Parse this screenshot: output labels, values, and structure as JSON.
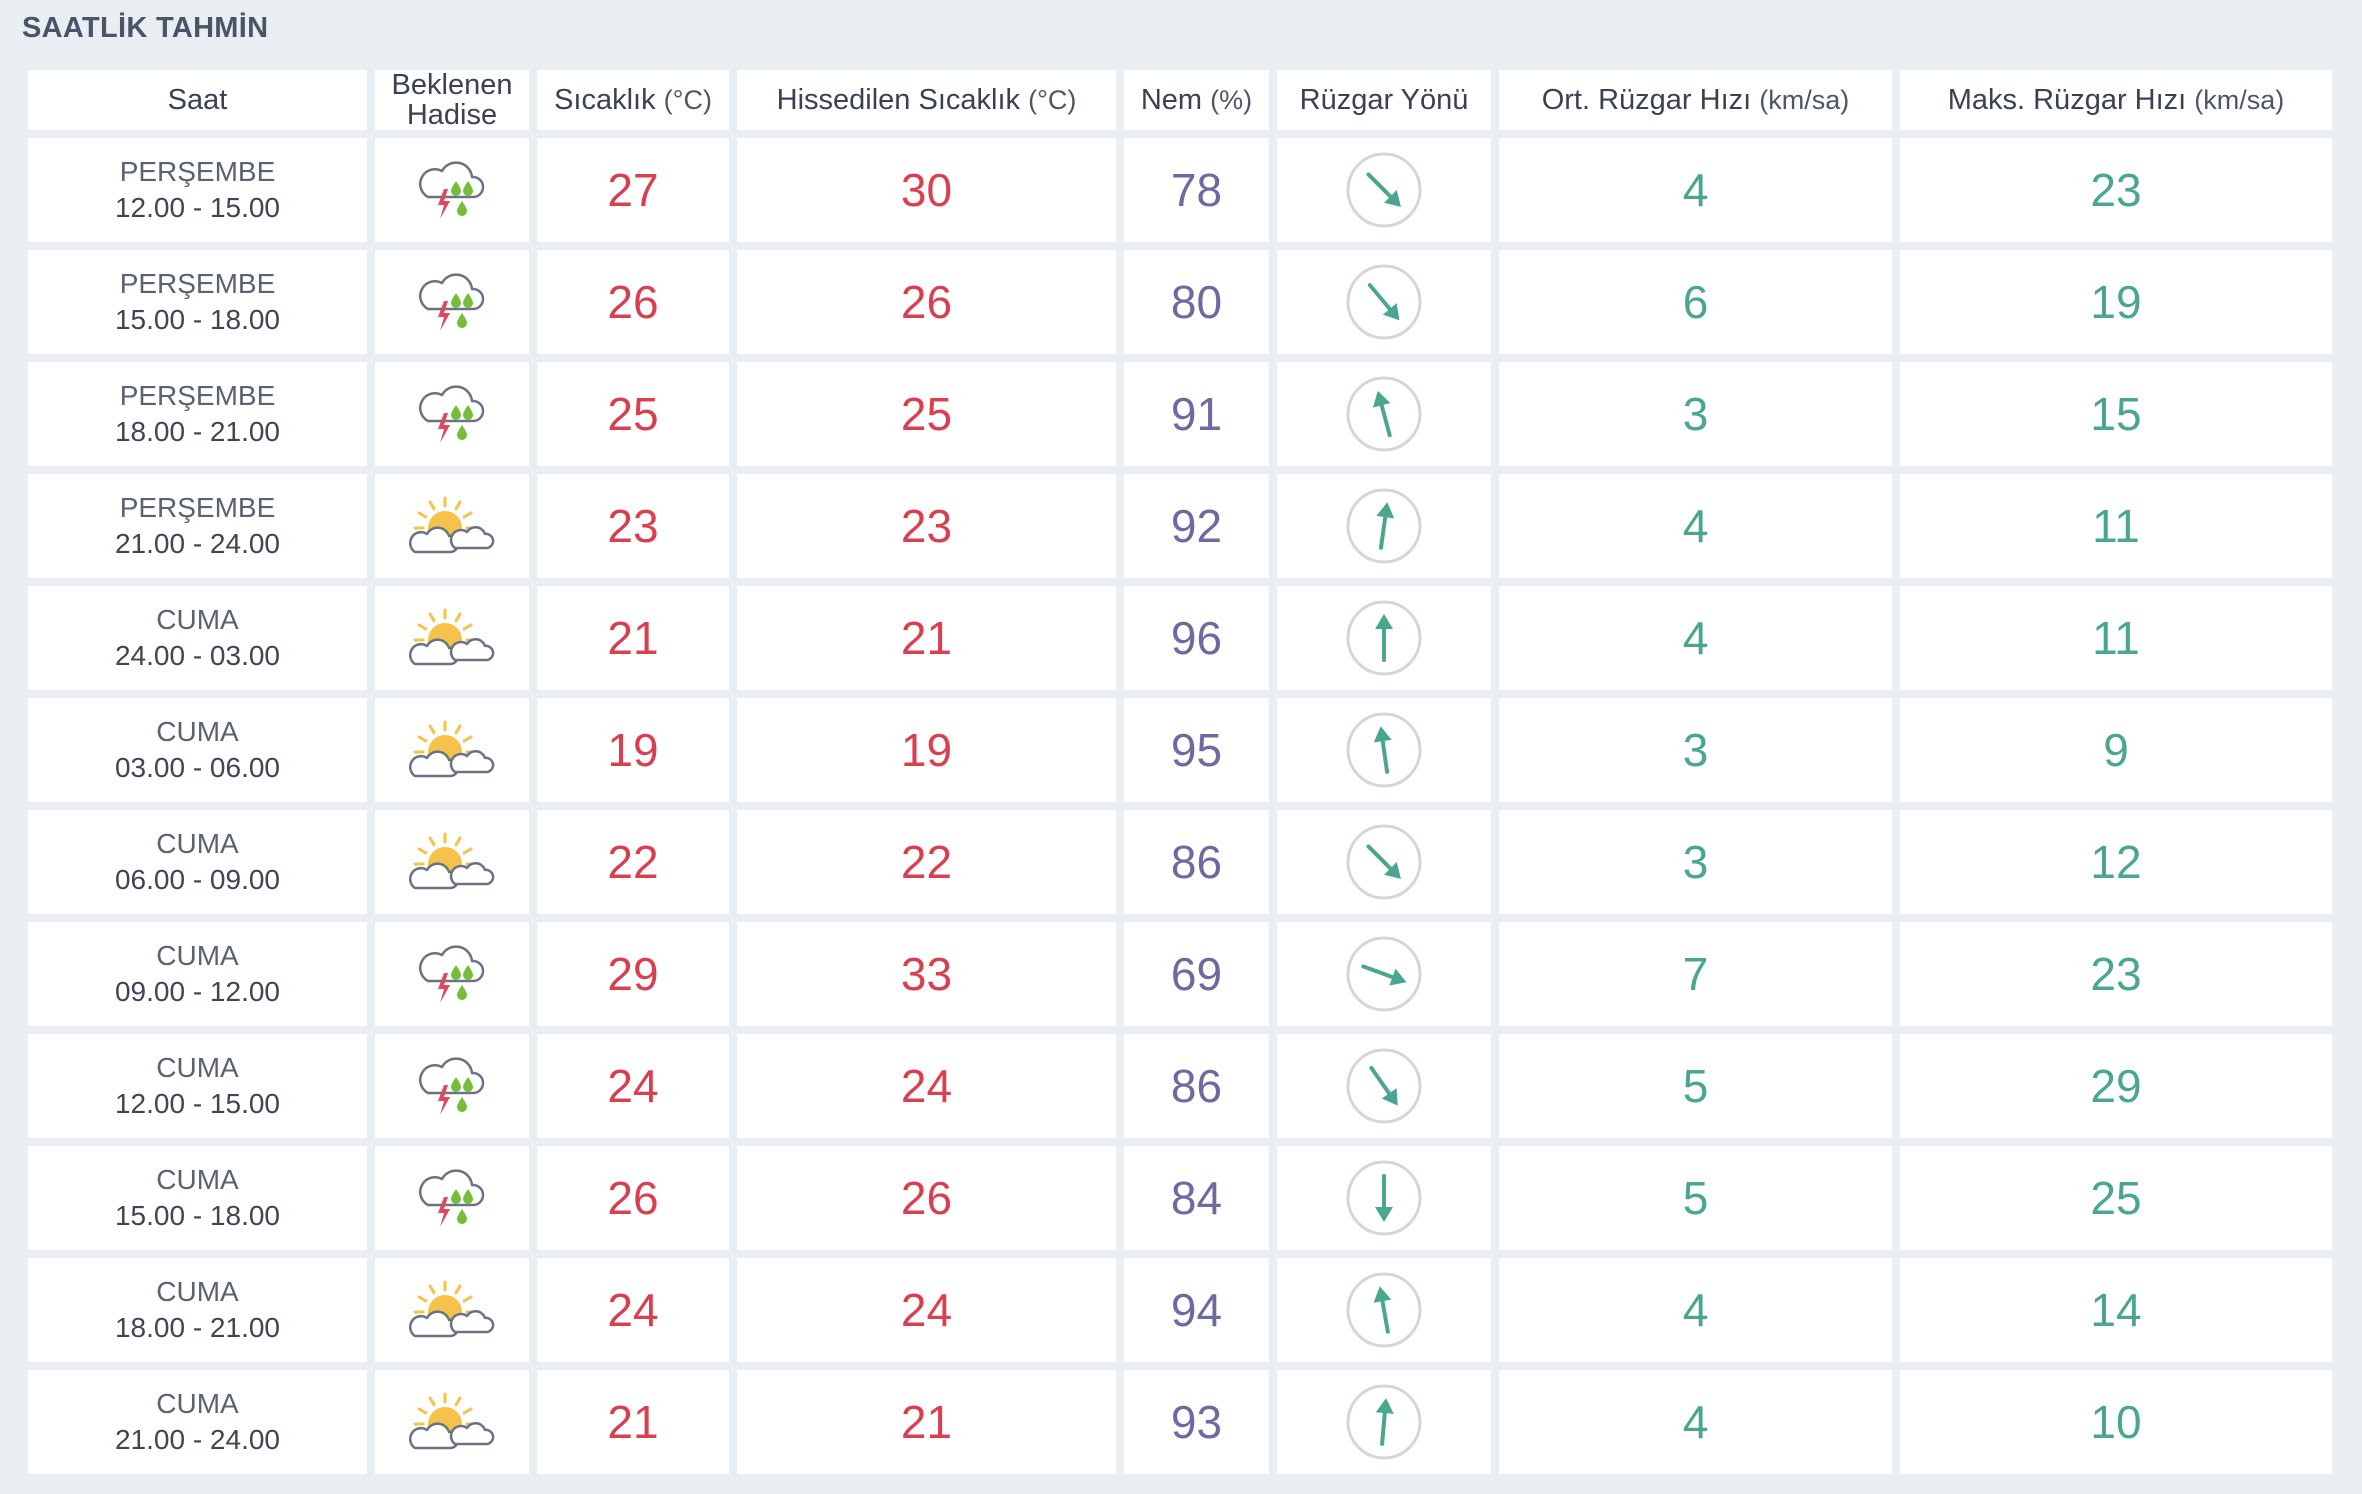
{
  "title": "SAATLİK TAHMİN",
  "headers": {
    "time": "Saat",
    "icon_line1": "Beklenen",
    "icon_line2": "Hadise",
    "temp_label": "Sıcaklık",
    "temp_unit": "(°C)",
    "feel_label": "Hissedilen Sıcaklık",
    "feel_unit": "(°C)",
    "hum_label": "Nem",
    "hum_unit": "(%)",
    "dir_label": "Rüzgar Yönü",
    "avg_label": "Ort. Rüzgar Hızı",
    "avg_unit": "(km/sa)",
    "max_label": "Maks. Rüzgar Hızı",
    "max_unit": "(km/sa)"
  },
  "colors": {
    "temperature": "#d8404f",
    "humidity": "#6c6a9e",
    "wind": "#4aa68e",
    "rain_drop": "#78bc3c",
    "lightning": "#e04a5c",
    "sun": "#f5c24a"
  },
  "rows": [
    {
      "day": "PERŞEMBE",
      "range": "12.00 - 15.00",
      "icon": "thunderstorm-rain-icon",
      "temp": "27",
      "feel": "30",
      "humidity": "78",
      "wind_dir_deg": 135,
      "avg": "4",
      "max": "23"
    },
    {
      "day": "PERŞEMBE",
      "range": "15.00 - 18.00",
      "icon": "thunderstorm-rain-icon",
      "temp": "26",
      "feel": "26",
      "humidity": "80",
      "wind_dir_deg": 140,
      "avg": "6",
      "max": "19"
    },
    {
      "day": "PERŞEMBE",
      "range": "18.00 - 21.00",
      "icon": "thunderstorm-rain-icon",
      "temp": "25",
      "feel": "25",
      "humidity": "91",
      "wind_dir_deg": -15,
      "avg": "3",
      "max": "15"
    },
    {
      "day": "PERŞEMBE",
      "range": "21.00 - 24.00",
      "icon": "partly-cloudy-icon",
      "temp": "23",
      "feel": "23",
      "humidity": "92",
      "wind_dir_deg": 8,
      "avg": "4",
      "max": "11"
    },
    {
      "day": "CUMA",
      "range": "24.00 - 03.00",
      "icon": "partly-cloudy-icon",
      "temp": "21",
      "feel": "21",
      "humidity": "96",
      "wind_dir_deg": 0,
      "avg": "4",
      "max": "11"
    },
    {
      "day": "CUMA",
      "range": "03.00 - 06.00",
      "icon": "partly-cloudy-icon",
      "temp": "19",
      "feel": "19",
      "humidity": "95",
      "wind_dir_deg": -8,
      "avg": "3",
      "max": "9"
    },
    {
      "day": "CUMA",
      "range": "06.00 - 09.00",
      "icon": "partly-cloudy-icon",
      "temp": "22",
      "feel": "22",
      "humidity": "86",
      "wind_dir_deg": 135,
      "avg": "3",
      "max": "12"
    },
    {
      "day": "CUMA",
      "range": "09.00 - 12.00",
      "icon": "thunderstorm-rain-icon",
      "temp": "29",
      "feel": "33",
      "humidity": "69",
      "wind_dir_deg": 110,
      "avg": "7",
      "max": "23"
    },
    {
      "day": "CUMA",
      "range": "12.00 - 15.00",
      "icon": "thunderstorm-rain-icon",
      "temp": "24",
      "feel": "24",
      "humidity": "86",
      "wind_dir_deg": 145,
      "avg": "5",
      "max": "29"
    },
    {
      "day": "CUMA",
      "range": "15.00 - 18.00",
      "icon": "thunderstorm-rain-icon",
      "temp": "26",
      "feel": "26",
      "humidity": "84",
      "wind_dir_deg": 180,
      "avg": "5",
      "max": "25"
    },
    {
      "day": "CUMA",
      "range": "18.00 - 21.00",
      "icon": "partly-cloudy-icon",
      "temp": "24",
      "feel": "24",
      "humidity": "94",
      "wind_dir_deg": -10,
      "avg": "4",
      "max": "14"
    },
    {
      "day": "CUMA",
      "range": "21.00 - 24.00",
      "icon": "partly-cloudy-icon",
      "temp": "21",
      "feel": "21",
      "humidity": "93",
      "wind_dir_deg": 5,
      "avg": "4",
      "max": "10"
    }
  ]
}
